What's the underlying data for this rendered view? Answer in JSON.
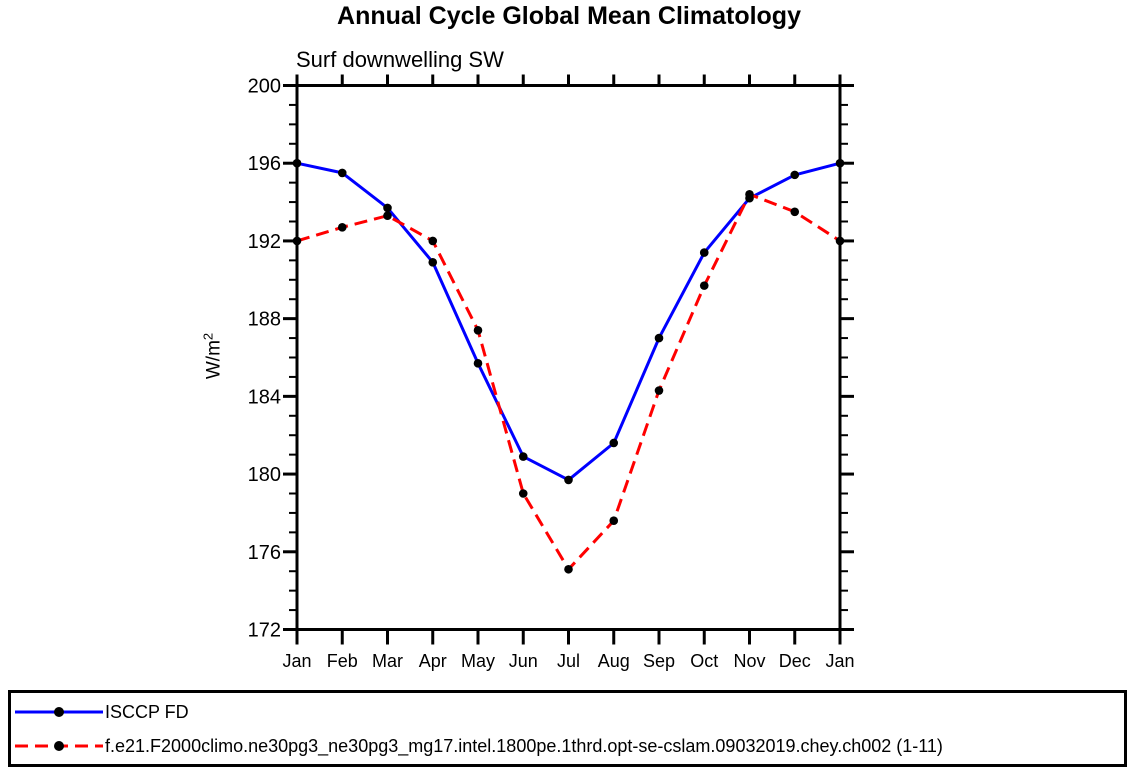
{
  "page": {
    "background_color": "#ffffff",
    "accent_black": "#000000"
  },
  "chart_data": {
    "type": "line",
    "title": "Annual Cycle Global Mean Climatology",
    "subtitle": "Surf downwelling SW",
    "ylabel_base": "W/m",
    "ylabel_exponent": "2",
    "x_tick_labels": [
      "Jan",
      "Feb",
      "Mar",
      "Apr",
      "May",
      "Jun",
      "Jul",
      "Aug",
      "Sep",
      "Oct",
      "Nov",
      "Dec",
      "Jan"
    ],
    "ylim": [
      172,
      200
    ],
    "y_major_tick_labels": [
      "172",
      "176",
      "180",
      "184",
      "188",
      "192",
      "196",
      "200"
    ],
    "y_major_tick_step": 4,
    "y_minor_tick_step": 1,
    "grid": false,
    "legend_position": "bottom",
    "axis_color": "#000000",
    "marker_color": "#000000",
    "series": [
      {
        "name": "ISCCP FD",
        "color": "#0000ff",
        "line_style": "solid",
        "marker": "filled-circle",
        "values": [
          196.0,
          195.5,
          193.7,
          190.9,
          185.7,
          180.9,
          179.7,
          181.6,
          187.0,
          191.4,
          194.2,
          195.4,
          196.0
        ]
      },
      {
        "name": "f.e21.F2000climo.ne30pg3_ne30pg3_mg17.intel.1800pe.1thrd.opt-se-cslam.09032019.chey.ch002 (1-11)",
        "color": "#ff0000",
        "line_style": "dashed",
        "marker": "filled-circle",
        "values": [
          192.0,
          192.7,
          193.3,
          192.0,
          187.4,
          179.0,
          175.1,
          177.6,
          184.3,
          189.7,
          194.4,
          193.5,
          192.0
        ]
      }
    ]
  }
}
